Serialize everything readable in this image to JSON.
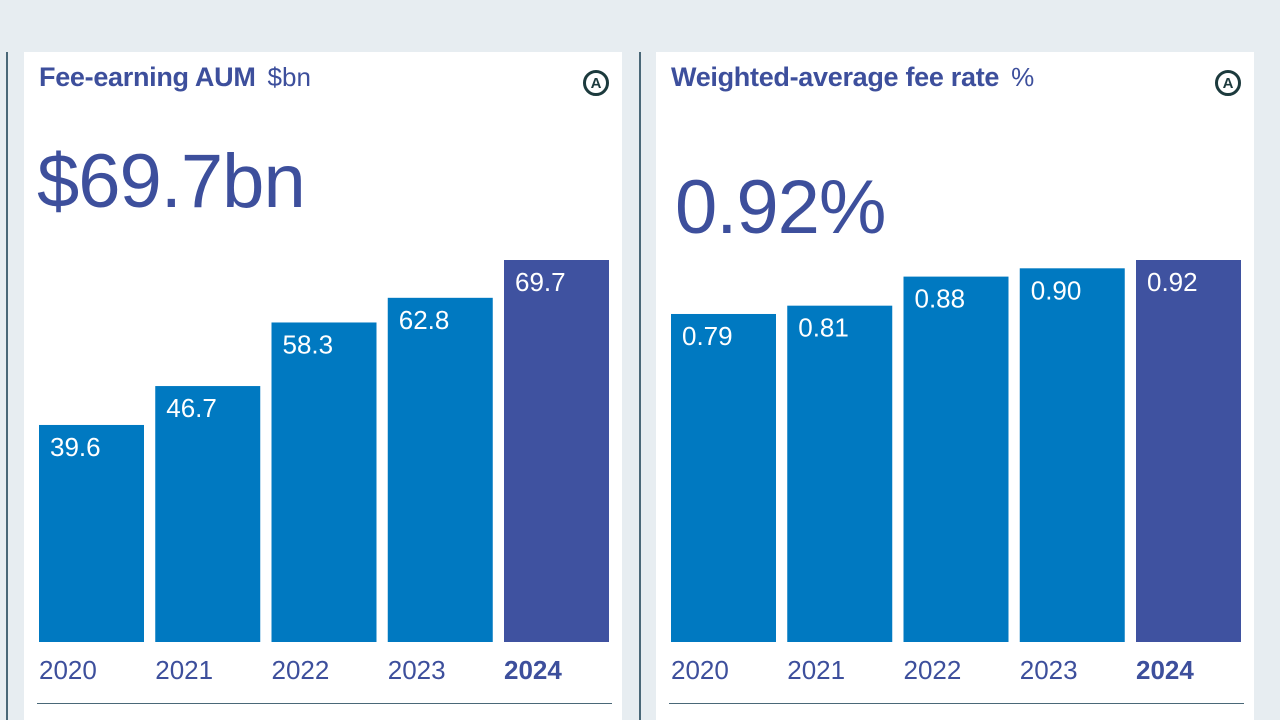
{
  "chart_data": [
    {
      "type": "bar",
      "title": "Fee-earning AUM",
      "unit": "$bn",
      "headline": "$69.7bn",
      "badge": "A",
      "categories": [
        "2020",
        "2021",
        "2022",
        "2023",
        "2024"
      ],
      "values": [
        39.6,
        46.7,
        58.3,
        62.8,
        69.7
      ],
      "value_labels": [
        "39.6",
        "46.7",
        "58.3",
        "62.8",
        "69.7"
      ],
      "highlight_index": 4,
      "ylim": [
        0,
        69.7
      ],
      "xlabel": "",
      "ylabel": "",
      "grid": false,
      "legend": "none"
    },
    {
      "type": "bar",
      "title": "Weighted-average fee rate",
      "unit": "%",
      "headline": "0.92%",
      "badge": "A",
      "categories": [
        "2020",
        "2021",
        "2022",
        "2023",
        "2024"
      ],
      "values": [
        0.79,
        0.81,
        0.88,
        0.9,
        0.92
      ],
      "value_labels": [
        "0.79",
        "0.81",
        "0.88",
        "0.90",
        "0.92"
      ],
      "highlight_index": 4,
      "ylim": [
        0,
        0.92
      ],
      "xlabel": "",
      "ylabel": "",
      "grid": false,
      "legend": "none"
    }
  ],
  "colors": {
    "bar": "#0079c1",
    "bar_highlight": "#3f52a0",
    "title": "#3d4f9c",
    "axis_label": "#3d4f9c",
    "background": "#e7edf1",
    "panel": "#ffffff"
  }
}
